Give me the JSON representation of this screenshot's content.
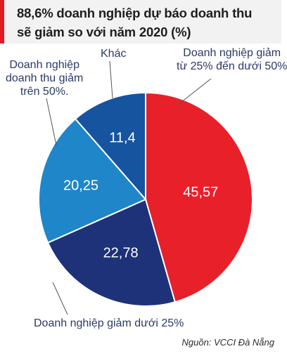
{
  "title": {
    "line1": "88,6% doanh nghiệp dự báo doanh thu",
    "line2": "sẽ giảm so với năm 2020 (%)"
  },
  "source": "Nguồn: VCCI Đà Nẵng",
  "colors": {
    "accent": "#e01b24",
    "red": "#e8202a",
    "navy": "#1d3278",
    "blue": "#17549f",
    "light_blue": "#1f86c9"
  },
  "chart_data": {
    "type": "pie",
    "title": "88,6% doanh nghiệp dự báo doanh thu sẽ giảm so với năm 2020 (%)",
    "slices": [
      {
        "label": "Doanh nghiệp giảm từ 25% đến dưới 50%",
        "value": 45.57,
        "value_label": "45,57",
        "color": "#e8202a"
      },
      {
        "label": "Doanh nghiệp giảm dưới 25%",
        "value": 22.78,
        "value_label": "22,78",
        "color": "#1d3278"
      },
      {
        "label": "Doanh nghiệp doanh thu giảm trên 50%.",
        "value": 20.25,
        "value_label": "20,25",
        "color": "#1f86c9"
      },
      {
        "label": "Khác",
        "value": 11.4,
        "value_label": "11,4",
        "color": "#17549f"
      }
    ]
  },
  "labels": {
    "red_line1": "Doanh nghiệp giảm",
    "red_line2": "từ 25% đến dưới 50%",
    "navy": "Doanh nghiệp giảm dưới 25%",
    "lightblue_line1": "Doanh nghiệp",
    "lightblue_line2": "doanh thu giảm",
    "lightblue_line3": "trên 50%.",
    "other": "Khác"
  }
}
